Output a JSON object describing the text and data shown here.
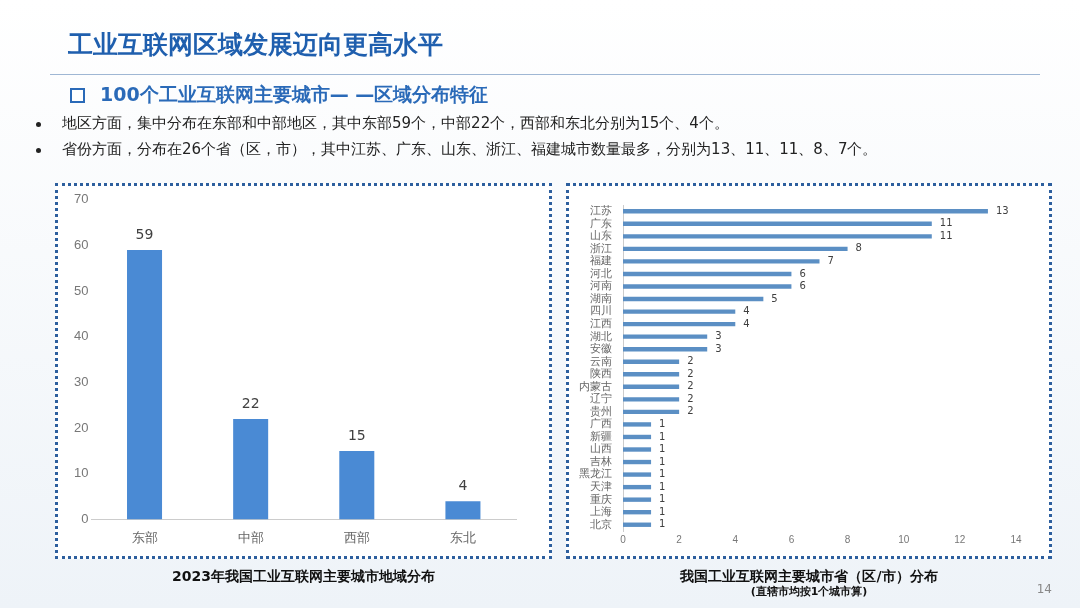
{
  "chart_data": [
    {
      "type": "bar",
      "title": "2023年我国工业互联网主要城市地域分布",
      "annotations": [
        "工业互联网区域发展迈向更高水平",
        "100个工业互联网主要城市— —区域分布特征",
        "地区方面，集中分布在东部和中部地区，其中东部59个，中部22个，西部和东北分别为15个、4个。",
        "省份方面，分布在26个省（区，市），其中江苏、广东、山东、浙江、福建城市数量最多，分别为13、11、11、8、7个。",
        "14"
      ],
      "categories": [
        "东部",
        "中部",
        "西部",
        "东北"
      ],
      "values": [
        59,
        22,
        15,
        4
      ],
      "color": "#4a8ad4",
      "ylim": [
        0,
        70
      ],
      "yticks": [
        0,
        10,
        20,
        30,
        40,
        50,
        60,
        70
      ],
      "data_labels": true
    },
    {
      "type": "bar",
      "orientation": "horizontal",
      "title": "我国工业互联网主要城市省（区/市）分布",
      "subtitle": "(直辖市均按1个城市算)",
      "categories": [
        "江苏",
        "广东",
        "山东",
        "浙江",
        "福建",
        "河北",
        "河南",
        "湖南",
        "四川",
        "江西",
        "湖北",
        "安徽",
        "云南",
        "陕西",
        "内蒙古",
        "辽宁",
        "贵州",
        "广西",
        "新疆",
        "山西",
        "吉林",
        "黑龙江",
        "天津",
        "重庆",
        "上海",
        "北京"
      ],
      "values": [
        13,
        11,
        11,
        8,
        7,
        6,
        6,
        5,
        4,
        4,
        3,
        3,
        2,
        2,
        2,
        2,
        2,
        1,
        1,
        1,
        1,
        1,
        1,
        1,
        1,
        1
      ],
      "color": "#5b8fc4",
      "xlim": [
        0,
        14
      ],
      "xticks": [
        0,
        2,
        4,
        6,
        8,
        10,
        12,
        14
      ],
      "data_labels": true
    }
  ]
}
